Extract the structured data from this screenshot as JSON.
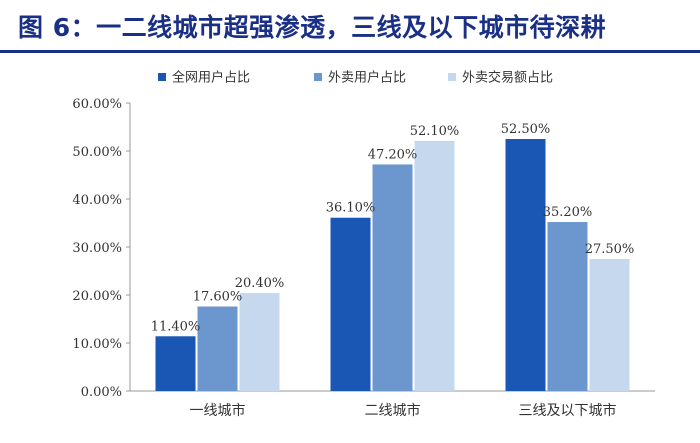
{
  "title": "图 6：一二线城市超强渗透，三线及以下城市待深耕",
  "colors": {
    "title": "#1a2f86",
    "series": [
      "#1a56b4",
      "#6b96ce",
      "#c5d8ee"
    ]
  },
  "chart_data": {
    "type": "bar",
    "categories": [
      "一线城市",
      "二线城市",
      "三线及以下城市"
    ],
    "series": [
      {
        "name": "全网用户占比",
        "values": [
          11.4,
          36.1,
          52.5
        ],
        "labels": [
          "11.40%",
          "36.10%",
          "52.50%"
        ]
      },
      {
        "name": "外卖用户占比",
        "values": [
          17.6,
          47.2,
          35.2
        ],
        "labels": [
          "17.60%",
          "47.20%",
          "35.20%"
        ]
      },
      {
        "name": "外卖交易额占比",
        "values": [
          20.4,
          52.1,
          27.5
        ],
        "labels": [
          "20.40%",
          "52.10%",
          "27.50%"
        ]
      }
    ],
    "yticks": [
      "0.00%",
      "10.00%",
      "20.00%",
      "30.00%",
      "40.00%",
      "50.00%",
      "60.00%"
    ],
    "ylim": [
      0,
      60
    ],
    "legend": "top",
    "grid": false
  }
}
